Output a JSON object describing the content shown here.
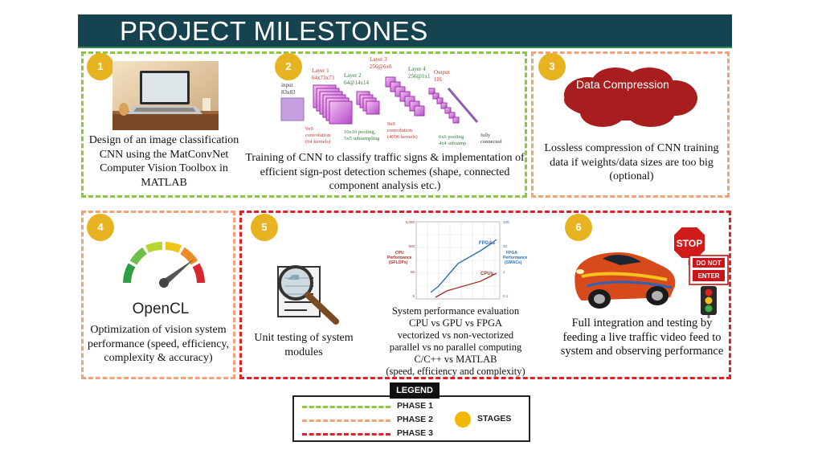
{
  "title": "PROJECT MILESTONES",
  "stages": [
    {
      "number": "1",
      "caption": "Design of an image classification CNN using the MatConvNet Computer Vision Toolbox in MATLAB"
    },
    {
      "number": "2",
      "caption": "Training of CNN to classify traffic signs & implementation of efficient sign-post detection schemes (shape, connected component analysis etc.)"
    },
    {
      "number": "3",
      "cloud_text": "Data Compression",
      "caption": "Lossless compression of CNN training data if weights/data sizes are too big (optional)"
    },
    {
      "number": "4",
      "logo_text": "OpenCL",
      "caption": "Optimization of vision system performance (speed, efficiency, complexity & accuracy)"
    },
    {
      "number": "5",
      "caption": "Unit testing of system modules",
      "caption2_lines": [
        "System performance evaluation",
        "CPU vs GPU vs FPGA",
        "vectorized vs non-vectorized",
        "parallel vs no parallel computing",
        "C/C++ vs MATLAB",
        "(speed, efficiency and complexity)"
      ]
    },
    {
      "number": "6",
      "caption": "Full integration and testing by feeding a live traffic video feed to system and observing performance"
    }
  ],
  "cnn_diagram": {
    "input": "input\n83x83",
    "layer1": "Layer 1\n64x73x73",
    "layer2": "Layer 2\n64@14x14",
    "layer3": "Layer 3\n256@6x6",
    "layer4": "Layer 4\n256@1x1",
    "output": "Output\n101",
    "op1": "9x9\nconvolution\n(64 kernels)",
    "op2": "10x10 pooling,\n5x5 subsampling",
    "op3": "9x9\nconvolution\n(4096 kernels)",
    "op4": "6x6 pooling\n4x4 subsamp",
    "op5": "fully\nconnected"
  },
  "perf_chart": {
    "left_ticks": [
      "5,000",
      "500",
      "50",
      "5"
    ],
    "right_ticks": [
      "100",
      "10",
      "1",
      "0.1"
    ],
    "left_label": "CPU\nPerformance\n(GFLOPs)",
    "right_label": "FPGA\nPerformance\n(GMACs)",
    "series_fpga": "FPGAs",
    "series_cpu": "CPUs",
    "colors": {
      "fpga": "#2e6fb0",
      "cpu": "#a0352a"
    }
  },
  "traffic_signs": {
    "stop": "STOP",
    "do_not": "DO NOT",
    "enter": "ENTER"
  },
  "legend": {
    "title": "LEGEND",
    "phase1": "PHASE 1",
    "phase2": "PHASE 2",
    "phase3": "PHASE 3",
    "stages": "STAGES",
    "colors": {
      "phase1": "#8dc63f",
      "phase2": "#f0a278",
      "phase3": "#e11f26",
      "stage": "#e8b321"
    }
  }
}
